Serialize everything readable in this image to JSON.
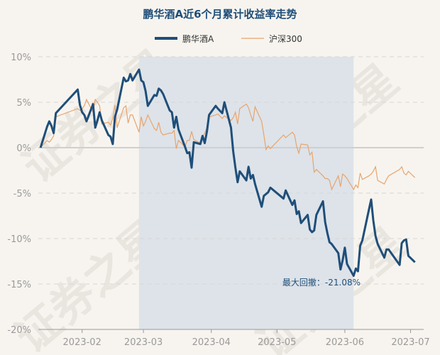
{
  "chart_data": {
    "type": "line",
    "title": "鹏华酒A近6个月累计收益率走势",
    "y_tick_labels": [
      "10%",
      "5%",
      "0%",
      "-5%",
      "-10%",
      "-15%",
      "-20%"
    ],
    "y_ticks": [
      10,
      5,
      0,
      -5,
      -10,
      -15,
      -20
    ],
    "ylim": [
      -20,
      10
    ],
    "x_tick_labels": [
      "2023-02",
      "2023-03",
      "2023-04",
      "2023-05",
      "2023-06",
      "2023-07"
    ],
    "x_ticks": [
      "2023-02-01",
      "2023-03-01",
      "2023-04-01",
      "2023-05-01",
      "2023-06-01",
      "2023-07-01"
    ],
    "xlim": [
      "2023-01-12",
      "2023-07-07"
    ],
    "grid": "horizontal dashed",
    "legend_position": "top-center",
    "series": [
      {
        "name": "鹏华酒A",
        "color": "#1f4e79",
        "points": [
          [
            "2023-01-13",
            0.0
          ],
          [
            "2023-01-16",
            2.3
          ],
          [
            "2023-01-17",
            2.9
          ],
          [
            "2023-01-18",
            2.4
          ],
          [
            "2023-01-19",
            1.6
          ],
          [
            "2023-01-20",
            3.8
          ],
          [
            "2023-01-30",
            6.4
          ],
          [
            "2023-01-31",
            4.7
          ],
          [
            "2023-02-01",
            3.9
          ],
          [
            "2023-02-02",
            3.6
          ],
          [
            "2023-02-03",
            2.9
          ],
          [
            "2023-02-06",
            4.8
          ],
          [
            "2023-02-07",
            2.2
          ],
          [
            "2023-02-08",
            3.0
          ],
          [
            "2023-02-09",
            3.9
          ],
          [
            "2023-02-10",
            3.0
          ],
          [
            "2023-02-13",
            1.4
          ],
          [
            "2023-02-14",
            1.2
          ],
          [
            "2023-02-15",
            0.4
          ],
          [
            "2023-02-16",
            3.4
          ],
          [
            "2023-02-17",
            4.2
          ],
          [
            "2023-02-20",
            7.7
          ],
          [
            "2023-02-21",
            7.3
          ],
          [
            "2023-02-22",
            7.4
          ],
          [
            "2023-02-23",
            8.1
          ],
          [
            "2023-02-24",
            7.4
          ],
          [
            "2023-02-27",
            8.6
          ],
          [
            "2023-02-28",
            7.4
          ],
          [
            "2023-03-01",
            7.2
          ],
          [
            "2023-03-02",
            6.2
          ],
          [
            "2023-03-03",
            4.6
          ],
          [
            "2023-03-06",
            5.8
          ],
          [
            "2023-03-07",
            5.7
          ],
          [
            "2023-03-08",
            6.5
          ],
          [
            "2023-03-09",
            6.3
          ],
          [
            "2023-03-10",
            5.9
          ],
          [
            "2023-03-13",
            4.1
          ],
          [
            "2023-03-14",
            3.9
          ],
          [
            "2023-03-15",
            2.2
          ],
          [
            "2023-03-16",
            3.4
          ],
          [
            "2023-03-17",
            2.0
          ],
          [
            "2023-03-20",
            0.1
          ],
          [
            "2023-03-21",
            -0.6
          ],
          [
            "2023-03-22",
            -0.5
          ],
          [
            "2023-03-23",
            -2.2
          ],
          [
            "2023-03-24",
            0.6
          ],
          [
            "2023-03-27",
            0.4
          ],
          [
            "2023-03-28",
            1.3
          ],
          [
            "2023-03-29",
            0.5
          ],
          [
            "2023-03-30",
            1.8
          ],
          [
            "2023-03-31",
            3.6
          ],
          [
            "2023-04-03",
            4.6
          ],
          [
            "2023-04-04",
            4.3
          ],
          [
            "2023-04-06",
            3.8
          ],
          [
            "2023-04-07",
            5.0
          ],
          [
            "2023-04-10",
            2.2
          ],
          [
            "2023-04-11",
            -0.4
          ],
          [
            "2023-04-12",
            -2.2
          ],
          [
            "2023-04-13",
            -3.8
          ],
          [
            "2023-04-14",
            -2.6
          ],
          [
            "2023-04-17",
            -3.6
          ],
          [
            "2023-04-18",
            -2.1
          ],
          [
            "2023-04-19",
            -3.4
          ],
          [
            "2023-04-20",
            -3.0
          ],
          [
            "2023-04-21",
            -4.0
          ],
          [
            "2023-04-24",
            -6.5
          ],
          [
            "2023-04-25",
            -5.3
          ],
          [
            "2023-04-26",
            -5.1
          ],
          [
            "2023-04-27",
            -4.9
          ],
          [
            "2023-04-28",
            -4.4
          ],
          [
            "2023-05-04",
            -5.6
          ],
          [
            "2023-05-05",
            -4.7
          ],
          [
            "2023-05-08",
            -6.3
          ],
          [
            "2023-05-09",
            -5.8
          ],
          [
            "2023-05-10",
            -7.3
          ],
          [
            "2023-05-11",
            -7.0
          ],
          [
            "2023-05-12",
            -8.3
          ],
          [
            "2023-05-15",
            -7.4
          ],
          [
            "2023-05-16",
            -9.0
          ],
          [
            "2023-05-17",
            -9.3
          ],
          [
            "2023-05-18",
            -9.1
          ],
          [
            "2023-05-19",
            -7.4
          ],
          [
            "2023-05-22",
            -5.9
          ],
          [
            "2023-05-23",
            -8.2
          ],
          [
            "2023-05-24",
            -9.4
          ],
          [
            "2023-05-25",
            -10.4
          ],
          [
            "2023-05-26",
            -10.6
          ],
          [
            "2023-05-29",
            -11.6
          ],
          [
            "2023-05-30",
            -13.4
          ],
          [
            "2023-05-31",
            -12.4
          ],
          [
            "2023-06-01",
            -11.0
          ],
          [
            "2023-06-02",
            -12.8
          ],
          [
            "2023-06-05",
            -14.1
          ],
          [
            "2023-06-06",
            -13.3
          ],
          [
            "2023-06-07",
            -13.6
          ],
          [
            "2023-06-08",
            -10.8
          ],
          [
            "2023-06-09",
            -10.2
          ],
          [
            "2023-06-12",
            -6.8
          ],
          [
            "2023-06-13",
            -5.7
          ],
          [
            "2023-06-14",
            -8.0
          ],
          [
            "2023-06-15",
            -9.7
          ],
          [
            "2023-06-16",
            -10.6
          ],
          [
            "2023-06-19",
            -12.1
          ],
          [
            "2023-06-20",
            -11.2
          ],
          [
            "2023-06-21",
            -11.2
          ],
          [
            "2023-06-26",
            -12.9
          ],
          [
            "2023-06-27",
            -10.5
          ],
          [
            "2023-06-28",
            -10.2
          ],
          [
            "2023-06-29",
            -10.1
          ],
          [
            "2023-06-30",
            -11.9
          ],
          [
            "2023-07-03",
            -12.6
          ]
        ]
      },
      {
        "name": "沪深300",
        "color": "#e8a46c",
        "points": [
          [
            "2023-01-13",
            0.0
          ],
          [
            "2023-01-16",
            0.8
          ],
          [
            "2023-01-17",
            0.6
          ],
          [
            "2023-01-18",
            0.9
          ],
          [
            "2023-01-19",
            1.3
          ],
          [
            "2023-01-20",
            3.4
          ],
          [
            "2023-01-30",
            4.3
          ],
          [
            "2023-01-31",
            4.1
          ],
          [
            "2023-02-01",
            4.3
          ],
          [
            "2023-02-02",
            4.6
          ],
          [
            "2023-02-03",
            5.3
          ],
          [
            "2023-02-06",
            3.9
          ],
          [
            "2023-02-07",
            5.3
          ],
          [
            "2023-02-08",
            5.0
          ],
          [
            "2023-02-09",
            4.6
          ],
          [
            "2023-02-10",
            2.6
          ],
          [
            "2023-02-13",
            2.8
          ],
          [
            "2023-02-14",
            2.5
          ],
          [
            "2023-02-15",
            3.2
          ],
          [
            "2023-02-16",
            4.7
          ],
          [
            "2023-02-17",
            2.2
          ],
          [
            "2023-02-20",
            4.4
          ],
          [
            "2023-02-21",
            4.6
          ],
          [
            "2023-02-22",
            2.7
          ],
          [
            "2023-02-23",
            3.6
          ],
          [
            "2023-02-24",
            3.6
          ],
          [
            "2023-02-27",
            1.7
          ],
          [
            "2023-02-28",
            3.4
          ],
          [
            "2023-03-01",
            2.4
          ],
          [
            "2023-03-02",
            2.9
          ],
          [
            "2023-03-03",
            3.6
          ],
          [
            "2023-03-06",
            2.1
          ],
          [
            "2023-03-07",
            1.9
          ],
          [
            "2023-03-08",
            2.8
          ],
          [
            "2023-03-09",
            1.7
          ],
          [
            "2023-03-10",
            1.4
          ],
          [
            "2023-03-13",
            1.6
          ],
          [
            "2023-03-14",
            1.6
          ],
          [
            "2023-03-15",
            1.9
          ],
          [
            "2023-03-16",
            -0.1
          ],
          [
            "2023-03-17",
            0.8
          ],
          [
            "2023-03-20",
            0.1
          ],
          [
            "2023-03-21",
            0.8
          ],
          [
            "2023-03-22",
            0.8
          ],
          [
            "2023-03-23",
            1.8
          ],
          [
            "2023-03-24",
            0.9
          ],
          [
            "2023-03-27",
            0.5
          ],
          [
            "2023-03-28",
            1.1
          ],
          [
            "2023-03-29",
            1.6
          ],
          [
            "2023-03-30",
            2.2
          ],
          [
            "2023-03-31",
            3.4
          ],
          [
            "2023-04-03",
            3.6
          ],
          [
            "2023-04-04",
            3.7
          ],
          [
            "2023-04-06",
            3.2
          ],
          [
            "2023-04-07",
            3.5
          ],
          [
            "2023-04-10",
            3.0
          ],
          [
            "2023-04-11",
            3.3
          ],
          [
            "2023-04-12",
            3.9
          ],
          [
            "2023-04-13",
            2.6
          ],
          [
            "2023-04-14",
            4.3
          ],
          [
            "2023-04-17",
            4.8
          ],
          [
            "2023-04-18",
            4.4
          ],
          [
            "2023-04-19",
            3.6
          ],
          [
            "2023-04-20",
            2.9
          ],
          [
            "2023-04-21",
            4.5
          ],
          [
            "2023-04-24",
            2.9
          ],
          [
            "2023-04-25",
            1.4
          ],
          [
            "2023-04-26",
            -0.2
          ],
          [
            "2023-04-27",
            0.2
          ],
          [
            "2023-04-28",
            -0.1
          ],
          [
            "2023-05-04",
            1.4
          ],
          [
            "2023-05-05",
            1.1
          ],
          [
            "2023-05-08",
            1.7
          ],
          [
            "2023-05-09",
            1.4
          ],
          [
            "2023-05-10",
            0.1
          ],
          [
            "2023-05-11",
            -0.6
          ],
          [
            "2023-05-12",
            0.4
          ],
          [
            "2023-05-15",
            0.3
          ],
          [
            "2023-05-16",
            -0.8
          ],
          [
            "2023-05-17",
            -0.5
          ],
          [
            "2023-05-18",
            -2.7
          ],
          [
            "2023-05-19",
            -2.4
          ],
          [
            "2023-05-22",
            -3.1
          ],
          [
            "2023-05-23",
            -3.4
          ],
          [
            "2023-05-24",
            -3.4
          ],
          [
            "2023-05-25",
            -3.6
          ],
          [
            "2023-05-26",
            -4.6
          ],
          [
            "2023-05-29",
            -3.1
          ],
          [
            "2023-05-30",
            -4.3
          ],
          [
            "2023-05-31",
            -2.9
          ],
          [
            "2023-06-01",
            -3.1
          ],
          [
            "2023-06-02",
            -3.4
          ],
          [
            "2023-06-05",
            -4.6
          ],
          [
            "2023-06-06",
            -4.1
          ],
          [
            "2023-06-07",
            -4.4
          ],
          [
            "2023-06-08",
            -2.8
          ],
          [
            "2023-06-09",
            -3.5
          ],
          [
            "2023-06-12",
            -3.1
          ],
          [
            "2023-06-13",
            -2.9
          ],
          [
            "2023-06-14",
            -2.6
          ],
          [
            "2023-06-15",
            -2.1
          ],
          [
            "2023-06-16",
            -3.6
          ],
          [
            "2023-06-19",
            -4.0
          ],
          [
            "2023-06-20",
            -3.5
          ],
          [
            "2023-06-21",
            -3.1
          ],
          [
            "2023-06-26",
            -2.4
          ],
          [
            "2023-06-27",
            -2.1
          ],
          [
            "2023-06-28",
            -2.8
          ],
          [
            "2023-06-29",
            -3.0
          ],
          [
            "2023-06-30",
            -2.6
          ],
          [
            "2023-07-03",
            -3.3
          ]
        ]
      }
    ],
    "drawdown": {
      "label": "最大回撤：-21.08%",
      "start": "2023-02-27",
      "end": "2023-06-05",
      "fill_color": "#dde3e9"
    }
  },
  "watermark": "证券之星"
}
